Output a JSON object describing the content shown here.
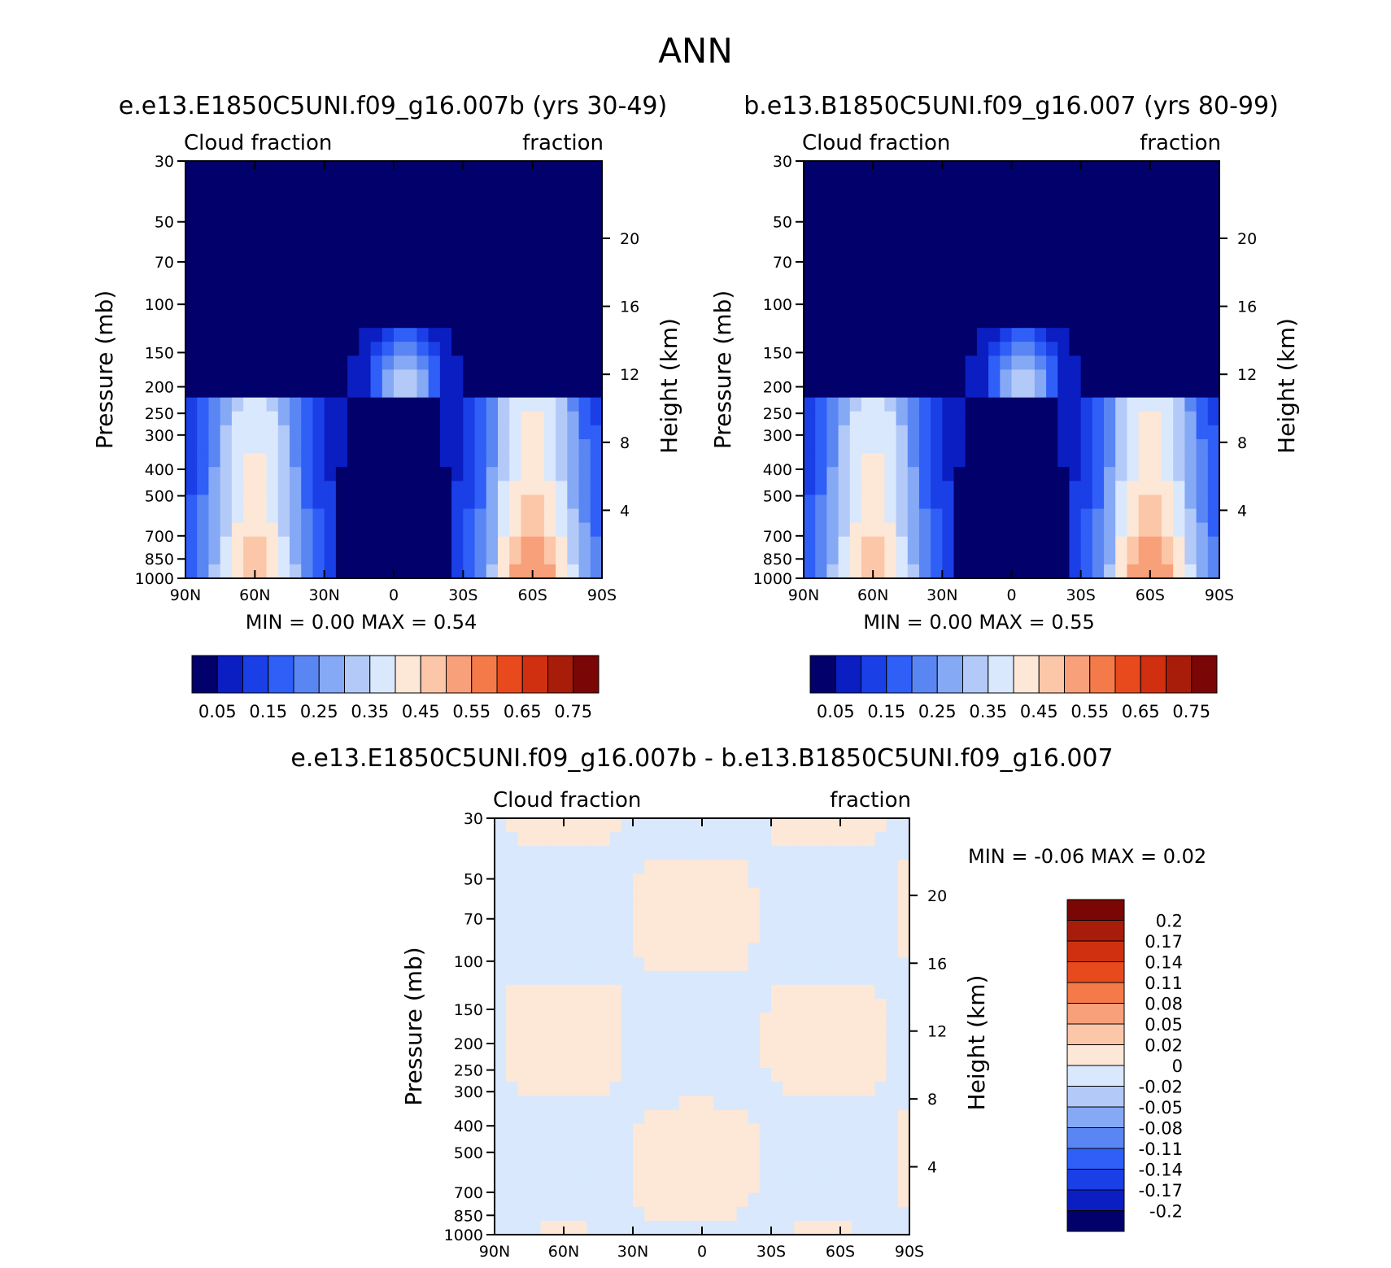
{
  "page": {
    "title": "ANN"
  },
  "chart_data": [
    {
      "type": "heatmap",
      "id": "p1",
      "title": "e.e13.E1850C5UNI.f09_g16.007b (yrs 30-49)",
      "left_label": "Cloud fraction",
      "right_label": "fraction",
      "ylabel": "Pressure (mb)",
      "ylabel2": "Height (km)",
      "x_ticks": [
        "90N",
        "60N",
        "30N",
        "0",
        "30S",
        "60S",
        "90S"
      ],
      "x_range": [
        90,
        -90
      ],
      "y_ticks": [
        30,
        50,
        70,
        100,
        150,
        200,
        250,
        300,
        400,
        500,
        700,
        850,
        1000
      ],
      "y_range": [
        30,
        1000
      ],
      "y_scale": "log",
      "y2_ticks": [
        20,
        16,
        12,
        8,
        4
      ],
      "min_text": "MIN =    0.00   MAX =    0.54",
      "min": 0.0,
      "max": 0.54,
      "colorbar": {
        "orientation": "horizontal",
        "labels": [
          "0.05",
          "0.15",
          "0.25",
          "0.35",
          "0.45",
          "0.55",
          "0.65",
          "0.75"
        ],
        "colors": [
          "#02006b",
          "#0a1ec2",
          "#1a3fe6",
          "#2f5ff7",
          "#5a86f4",
          "#86a9f5",
          "#b3caf8",
          "#d9e8fc",
          "#fde7d6",
          "#fcc7a8",
          "#f8a07a",
          "#f47a4a",
          "#e84a1e",
          "#d03010",
          "#a81d0a",
          "#7a0606"
        ]
      }
    },
    {
      "type": "heatmap",
      "id": "p2",
      "title": "b.e13.B1850C5UNI.f09_g16.007 (yrs 80-99)",
      "left_label": "Cloud fraction",
      "right_label": "fraction",
      "ylabel": "Pressure (mb)",
      "ylabel2": "Height (km)",
      "x_ticks": [
        "90N",
        "60N",
        "30N",
        "0",
        "30S",
        "60S",
        "90S"
      ],
      "x_range": [
        90,
        -90
      ],
      "y_ticks": [
        30,
        50,
        70,
        100,
        150,
        200,
        250,
        300,
        400,
        500,
        700,
        850,
        1000
      ],
      "y_range": [
        30,
        1000
      ],
      "y_scale": "log",
      "y2_ticks": [
        20,
        16,
        12,
        8,
        4
      ],
      "min_text": "MIN =    0.00   MAX =    0.55",
      "min": 0.0,
      "max": 0.55,
      "colorbar": {
        "orientation": "horizontal",
        "labels": [
          "0.05",
          "0.15",
          "0.25",
          "0.35",
          "0.45",
          "0.55",
          "0.65",
          "0.75"
        ],
        "colors": [
          "#02006b",
          "#0a1ec2",
          "#1a3fe6",
          "#2f5ff7",
          "#5a86f4",
          "#86a9f5",
          "#b3caf8",
          "#d9e8fc",
          "#fde7d6",
          "#fcc7a8",
          "#f8a07a",
          "#f47a4a",
          "#e84a1e",
          "#d03010",
          "#a81d0a",
          "#7a0606"
        ]
      }
    },
    {
      "type": "heatmap",
      "id": "p3",
      "title": "e.e13.E1850C5UNI.f09_g16.007b - b.e13.B1850C5UNI.f09_g16.007",
      "left_label": "Cloud fraction",
      "right_label": "fraction",
      "ylabel": "Pressure (mb)",
      "ylabel2": "Height (km)",
      "x_ticks": [
        "90N",
        "60N",
        "30N",
        "0",
        "30S",
        "60S",
        "90S"
      ],
      "x_range": [
        90,
        -90
      ],
      "y_ticks": [
        30,
        50,
        70,
        100,
        150,
        200,
        250,
        300,
        400,
        500,
        700,
        850,
        1000
      ],
      "y_range": [
        30,
        1000
      ],
      "y_scale": "log",
      "y2_ticks": [
        20,
        16,
        12,
        8,
        4
      ],
      "min_text": "MIN =   -0.06   MAX =    0.02",
      "min": -0.06,
      "max": 0.02,
      "colorbar": {
        "orientation": "vertical",
        "labels": [
          "0.2",
          "0.17",
          "0.14",
          "0.11",
          "0.08",
          "0.05",
          "0.02",
          "0",
          "-0.02",
          "-0.05",
          "-0.08",
          "-0.11",
          "-0.14",
          "-0.17",
          "-0.2"
        ],
        "colors": [
          "#7a0606",
          "#a81d0a",
          "#d03010",
          "#e84a1e",
          "#f47a4a",
          "#f8a07a",
          "#fcc7a8",
          "#fde7d6",
          "#d9e8fc",
          "#b3caf8",
          "#86a9f5",
          "#5a86f4",
          "#2f5ff7",
          "#1a3fe6",
          "#0a1ec2",
          "#02006b"
        ]
      }
    }
  ]
}
